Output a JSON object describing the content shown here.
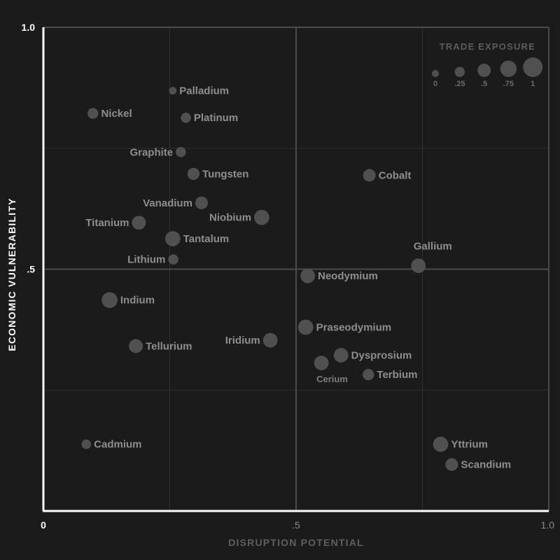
{
  "chart_data": {
    "type": "scatter",
    "xlabel": "DISRUPTION POTENTIAL",
    "ylabel": "ECONOMIC VULNERABILITY",
    "xlim": [
      0,
      1.0
    ],
    "ylim": [
      0,
      1.0
    ],
    "x_ticks": [
      {
        "value": 0,
        "label": "0"
      },
      {
        "value": 0.5,
        "label": ".5"
      },
      {
        "value": 1.0,
        "label": "1.0"
      }
    ],
    "y_ticks": [
      {
        "value": 0.5,
        "label": ".5"
      },
      {
        "value": 1.0,
        "label": "1.0"
      }
    ],
    "grid": true,
    "grid_minor_x": [
      0.25,
      0.75
    ],
    "grid_minor_y": [
      0.25,
      0.75
    ],
    "grid_major": [
      0.5
    ],
    "colors": {
      "background": "#1b1b1b",
      "point": "#505050",
      "label": "#8e8e8e",
      "grid_minor": "#2f2f2f",
      "grid_major": "#4b4b4b",
      "axis": "#ffffff"
    },
    "size_legend": {
      "title": "TRADE EXPOSURE",
      "placement": "top-right",
      "entries": [
        {
          "value": 0,
          "label": "0"
        },
        {
          "value": 0.25,
          "label": ".25"
        },
        {
          "value": 0.5,
          "label": ".5"
        },
        {
          "value": 0.75,
          "label": ".75"
        },
        {
          "value": 1,
          "label": "1"
        }
      ]
    },
    "points": [
      {
        "name": "Palladium",
        "x": 0.256,
        "y": 0.869,
        "size": 0.05,
        "label_pos": "right"
      },
      {
        "name": "Nickel",
        "x": 0.098,
        "y": 0.822,
        "size": 0.3,
        "label_pos": "right"
      },
      {
        "name": "Platinum",
        "x": 0.282,
        "y": 0.813,
        "size": 0.25,
        "label_pos": "right"
      },
      {
        "name": "Graphite",
        "x": 0.272,
        "y": 0.742,
        "size": 0.25,
        "label_pos": "left"
      },
      {
        "name": "Tungsten",
        "x": 0.297,
        "y": 0.697,
        "size": 0.4,
        "label_pos": "right"
      },
      {
        "name": "Cobalt",
        "x": 0.645,
        "y": 0.694,
        "size": 0.45,
        "label_pos": "right"
      },
      {
        "name": "Vanadium",
        "x": 0.313,
        "y": 0.637,
        "size": 0.45,
        "label_pos": "left"
      },
      {
        "name": "Niobium",
        "x": 0.432,
        "y": 0.607,
        "size": 0.65,
        "label_pos": "left"
      },
      {
        "name": "Titanium",
        "x": 0.189,
        "y": 0.596,
        "size": 0.55,
        "label_pos": "left"
      },
      {
        "name": "Tantalum",
        "x": 0.256,
        "y": 0.563,
        "size": 0.65,
        "label_pos": "right"
      },
      {
        "name": "Lithium",
        "x": 0.257,
        "y": 0.52,
        "size": 0.25,
        "label_pos": "left"
      },
      {
        "name": "Gallium",
        "x": 0.742,
        "y": 0.507,
        "size": 0.6,
        "label_pos": "above"
      },
      {
        "name": "Neodymium",
        "x": 0.523,
        "y": 0.486,
        "size": 0.6,
        "label_pos": "right"
      },
      {
        "name": "Indium",
        "x": 0.131,
        "y": 0.436,
        "size": 0.7,
        "label_pos": "right"
      },
      {
        "name": "Praseodymium",
        "x": 0.519,
        "y": 0.38,
        "size": 0.65,
        "label_pos": "right"
      },
      {
        "name": "Iridium",
        "x": 0.449,
        "y": 0.353,
        "size": 0.6,
        "label_pos": "left"
      },
      {
        "name": "Tellurium",
        "x": 0.183,
        "y": 0.341,
        "size": 0.55,
        "label_pos": "right"
      },
      {
        "name": "Dysprosium",
        "x": 0.589,
        "y": 0.322,
        "size": 0.6,
        "label_pos": "right"
      },
      {
        "name": "Cerium",
        "x": 0.55,
        "y": 0.306,
        "size": 0.6,
        "label_pos": "below"
      },
      {
        "name": "Terbium",
        "x": 0.643,
        "y": 0.282,
        "size": 0.35,
        "label_pos": "right"
      },
      {
        "name": "Cadmium",
        "x": 0.085,
        "y": 0.138,
        "size": 0.2,
        "label_pos": "right"
      },
      {
        "name": "Yttrium",
        "x": 0.786,
        "y": 0.138,
        "size": 0.65,
        "label_pos": "right"
      },
      {
        "name": "Scandium",
        "x": 0.808,
        "y": 0.096,
        "size": 0.45,
        "label_pos": "right"
      }
    ]
  }
}
